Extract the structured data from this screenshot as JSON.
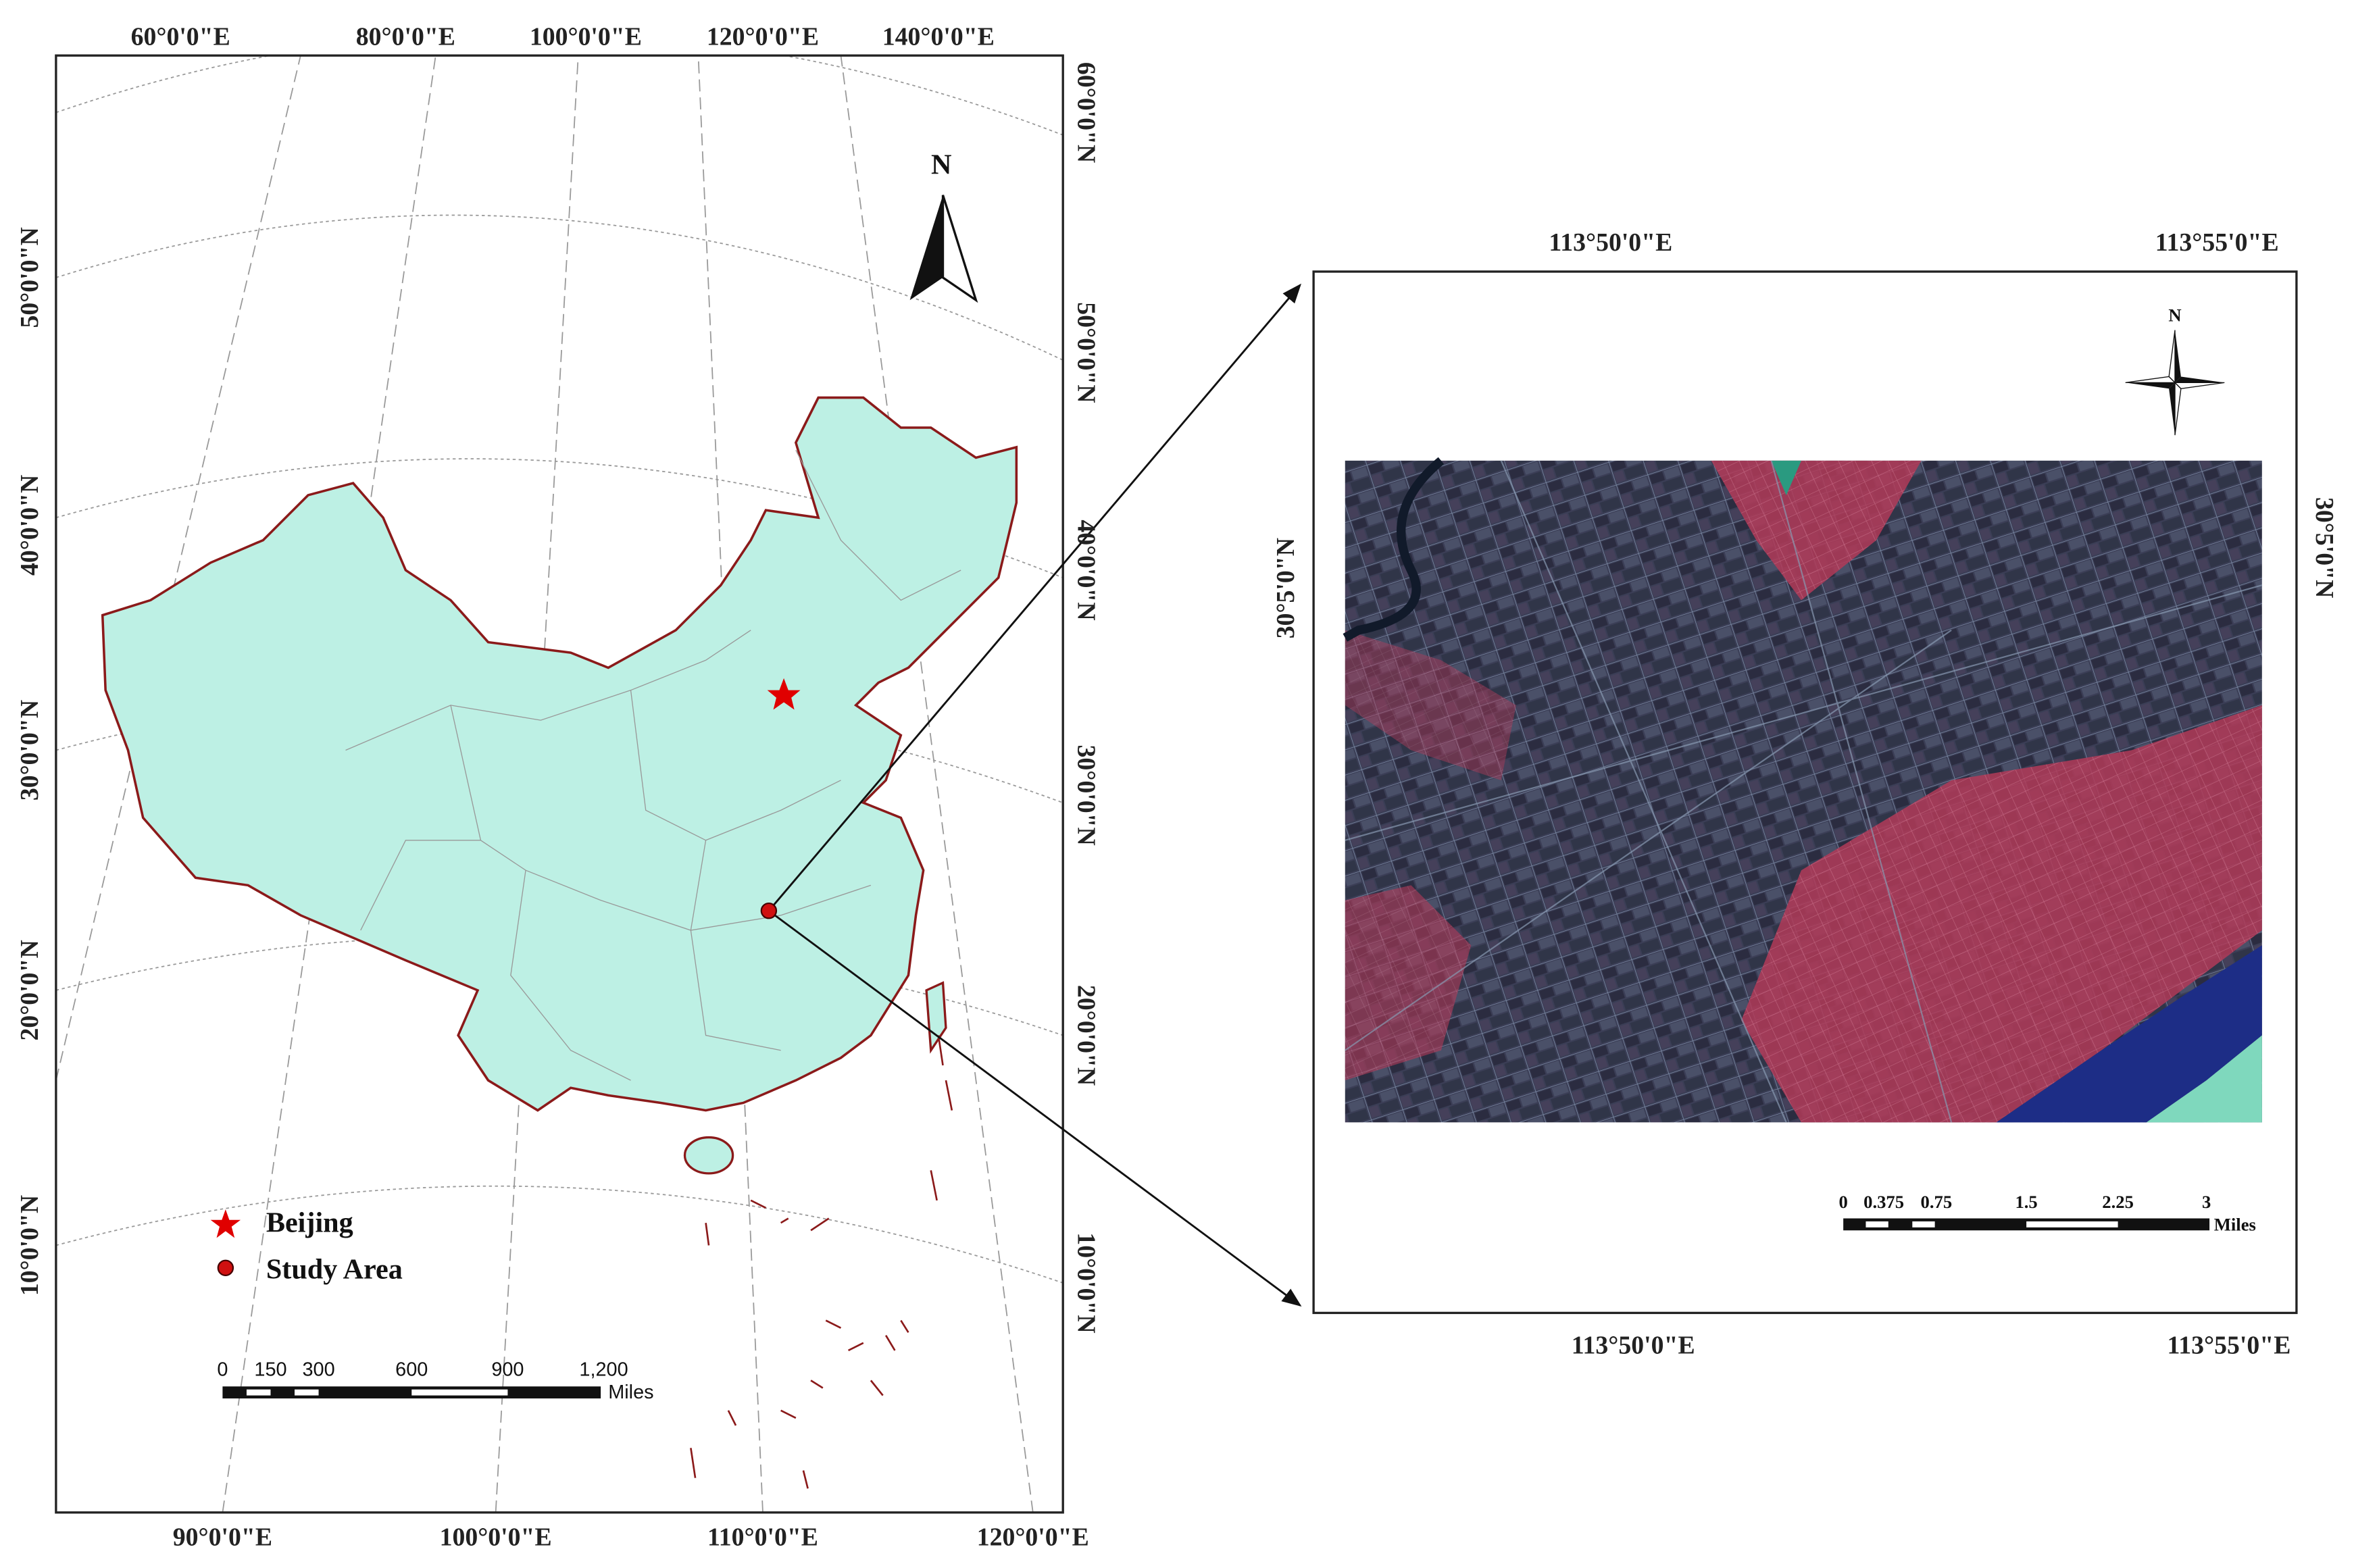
{
  "left_map": {
    "top_labels": [
      "60°0'0\"E",
      "80°0'0\"E",
      "100°0'0\"E",
      "120°0'0\"E",
      "140°0'0\"E"
    ],
    "bottom_labels": [
      "90°0'0\"E",
      "100°0'0\"E",
      "110°0'0\"E",
      "120°0'0\"E"
    ],
    "left_labels": [
      "50°0'0\"N",
      "40°0'0\"N",
      "30°0'0\"N",
      "20°0'0\"N",
      "10°0'0\"N"
    ],
    "right_labels": [
      "60°0'0\"N",
      "50°0'0\"N",
      "40°0'0\"N",
      "30°0'0\"N",
      "20°0'0\"N",
      "10°0'0\"N"
    ],
    "north": "N",
    "legend": [
      "Beijing",
      "Study Area"
    ],
    "scale": {
      "labels": [
        "0",
        "150",
        "300",
        "600",
        "900",
        "1,200"
      ],
      "unit": "Miles"
    }
  },
  "right_map": {
    "top_labels": [
      "113°50'0\"E",
      "113°55'0\"E"
    ],
    "bottom_labels": [
      "113°50'0\"E",
      "113°55'0\"E"
    ],
    "left_label": "30°5'0\"N",
    "right_label": "30°5'0\"N",
    "north": "N",
    "scale": {
      "labels": [
        "0",
        "0.375",
        "0.75",
        "1.5",
        "2.25",
        "3"
      ],
      "unit": "Miles"
    }
  }
}
